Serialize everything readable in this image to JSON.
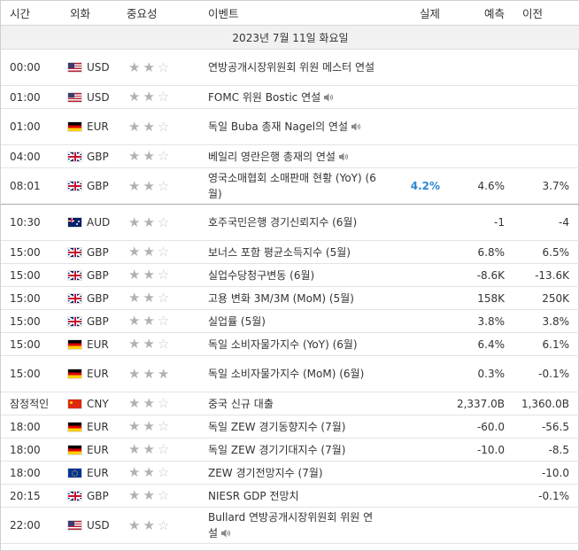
{
  "headers": {
    "time": "시간",
    "currency": "외화",
    "importance": "중요성",
    "event": "이벤트",
    "actual": "실제",
    "forecast": "예측",
    "previous": "이전"
  },
  "date_label": "2023년 7월 11일 화요일",
  "icons": {
    "speaker": "speaker-icon",
    "star": "star-icon",
    "flags": [
      "us-flag-icon",
      "de-flag-icon",
      "gb-flag-icon",
      "au-flag-icon",
      "cn-flag-icon",
      "eu-flag-icon"
    ]
  },
  "colors": {
    "actual_better": "#2b87d3",
    "star_filled": "#b1b1b1",
    "star_empty": "#c9c9c9",
    "date_bar": "#f1f1f1"
  },
  "events": [
    {
      "time": "00:00",
      "flag": "us",
      "currency": "USD",
      "importance": 2,
      "event": "연방공개시장위원회 위원 메스터 연설",
      "speech": false,
      "actual": "",
      "forecast": "",
      "previous": ""
    },
    {
      "time": "01:00",
      "flag": "us",
      "currency": "USD",
      "importance": 2,
      "event": "FOMC 위원 Bostic 연설",
      "speech": true,
      "actual": "",
      "forecast": "",
      "previous": ""
    },
    {
      "time": "01:00",
      "flag": "de",
      "currency": "EUR",
      "importance": 2,
      "event": "독일 Buba 총재 Nagel의 연설",
      "speech": true,
      "actual": "",
      "forecast": "",
      "previous": ""
    },
    {
      "time": "04:00",
      "flag": "gb",
      "currency": "GBP",
      "importance": 2,
      "event": "베일리 영란은행 총재의 연설",
      "speech": true,
      "actual": "",
      "forecast": "",
      "previous": ""
    },
    {
      "time": "08:01",
      "flag": "gb",
      "currency": "GBP",
      "importance": 2,
      "event": "영국소매협회 소매판매 현황 (YoY) (6월)",
      "speech": false,
      "actual": "4.2%",
      "forecast": "4.6%",
      "previous": "3.7%"
    },
    {
      "time": "10:30",
      "flag": "au",
      "currency": "AUD",
      "importance": 2,
      "event": "호주국민은행 경기신뢰지수 (6월)",
      "speech": false,
      "actual": "",
      "forecast": "-1",
      "previous": "-4"
    },
    {
      "time": "15:00",
      "flag": "gb",
      "currency": "GBP",
      "importance": 2,
      "event": "보너스 포함 평균소득지수 (5월)",
      "speech": false,
      "actual": "",
      "forecast": "6.8%",
      "previous": "6.5%"
    },
    {
      "time": "15:00",
      "flag": "gb",
      "currency": "GBP",
      "importance": 2,
      "event": "실업수당청구변동 (6월)",
      "speech": false,
      "actual": "",
      "forecast": "-8.6K",
      "previous": "-13.6K"
    },
    {
      "time": "15:00",
      "flag": "gb",
      "currency": "GBP",
      "importance": 2,
      "event": "고용 변화 3M/3M (MoM) (5월)",
      "speech": false,
      "actual": "",
      "forecast": "158K",
      "previous": "250K"
    },
    {
      "time": "15:00",
      "flag": "gb",
      "currency": "GBP",
      "importance": 2,
      "event": "실업률 (5월)",
      "speech": false,
      "actual": "",
      "forecast": "3.8%",
      "previous": "3.8%"
    },
    {
      "time": "15:00",
      "flag": "de",
      "currency": "EUR",
      "importance": 2,
      "event": "독일 소비자물가지수 (YoY) (6월)",
      "speech": false,
      "actual": "",
      "forecast": "6.4%",
      "previous": "6.1%"
    },
    {
      "time": "15:00",
      "flag": "de",
      "currency": "EUR",
      "importance": 3,
      "event": "독일 소비자물가지수 (MoM) (6월)",
      "speech": false,
      "actual": "",
      "forecast": "0.3%",
      "previous": "-0.1%"
    },
    {
      "time": "잠정적인",
      "flag": "cn",
      "currency": "CNY",
      "importance": 2,
      "event": "중국 신규 대출",
      "speech": false,
      "actual": "",
      "forecast": "2,337.0B",
      "previous": "1,360.0B"
    },
    {
      "time": "18:00",
      "flag": "de",
      "currency": "EUR",
      "importance": 2,
      "event": "독일 ZEW 경기동향지수 (7월)",
      "speech": false,
      "actual": "",
      "forecast": "-60.0",
      "previous": "-56.5"
    },
    {
      "time": "18:00",
      "flag": "de",
      "currency": "EUR",
      "importance": 2,
      "event": "독일 ZEW 경기기대지수 (7월)",
      "speech": false,
      "actual": "",
      "forecast": "-10.0",
      "previous": "-8.5"
    },
    {
      "time": "18:00",
      "flag": "eu",
      "currency": "EUR",
      "importance": 2,
      "event": "ZEW 경기전망지수 (7월)",
      "speech": false,
      "actual": "",
      "forecast": "",
      "previous": "-10.0"
    },
    {
      "time": "20:15",
      "flag": "gb",
      "currency": "GBP",
      "importance": 2,
      "event": "NIESR GDP 전망치",
      "speech": false,
      "actual": "",
      "forecast": "",
      "previous": "-0.1%"
    },
    {
      "time": "22:00",
      "flag": "us",
      "currency": "USD",
      "importance": 2,
      "event": "Bullard 연방공개시장위원회 위원 연설",
      "speech": true,
      "actual": "",
      "forecast": "",
      "previous": ""
    }
  ]
}
